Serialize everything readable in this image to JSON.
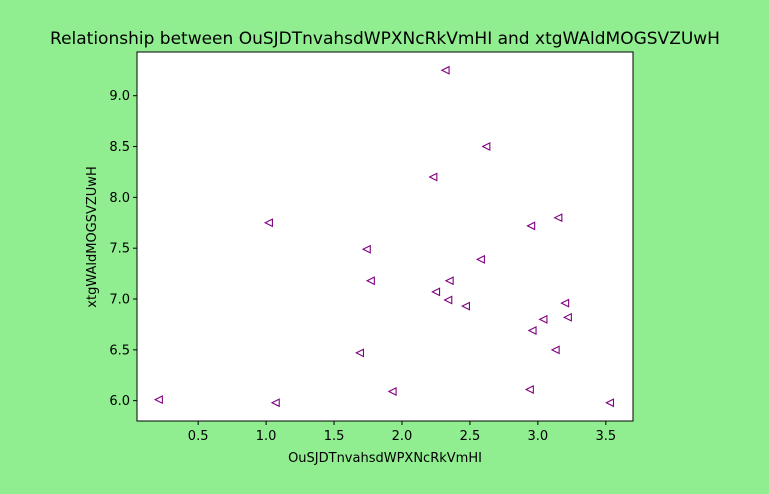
{
  "chart_data": {
    "type": "scatter",
    "title": "Relationship between OuSJDTnvahsdWPXNcRkVmHI and xtgWAldMOGSVZUwH",
    "xlabel": "OuSJDTnvahsdWPXNcRkVmHI",
    "ylabel": "xtgWAldMOGSVZUwH",
    "xlim": [
      0.05,
      3.7
    ],
    "ylim": [
      5.8,
      9.43
    ],
    "xticks": [
      0.5,
      1.0,
      1.5,
      2.0,
      2.5,
      3.0,
      3.5
    ],
    "yticks": [
      6.0,
      6.5,
      7.0,
      7.5,
      8.0,
      8.5,
      9.0
    ],
    "xtick_labels": [
      "0.5",
      "1.0",
      "1.5",
      "2.0",
      "2.5",
      "3.0",
      "3.5"
    ],
    "ytick_labels": [
      "6.0",
      "6.5",
      "7.0",
      "7.5",
      "8.0",
      "8.5",
      "9.0"
    ],
    "grid": false,
    "marker": "triangle-left",
    "marker_color": "#800080",
    "background_color": "#90EE90",
    "plot_background_color": "#FFFFFF",
    "series": [
      {
        "x": [
          2.32,
          2.62,
          2.23,
          1.02,
          3.15,
          2.95,
          1.74,
          2.58,
          1.77,
          2.35,
          2.25,
          2.34,
          2.47,
          3.2,
          3.04,
          3.22,
          2.96,
          1.69,
          3.13,
          0.21,
          1.07,
          1.93,
          2.94,
          3.53
        ],
        "y": [
          9.25,
          8.5,
          8.2,
          7.75,
          7.8,
          7.72,
          7.49,
          7.39,
          7.18,
          7.18,
          7.07,
          6.99,
          6.93,
          6.96,
          6.8,
          6.82,
          6.69,
          6.47,
          6.5,
          6.01,
          5.98,
          6.09,
          6.11,
          5.98
        ]
      }
    ]
  }
}
